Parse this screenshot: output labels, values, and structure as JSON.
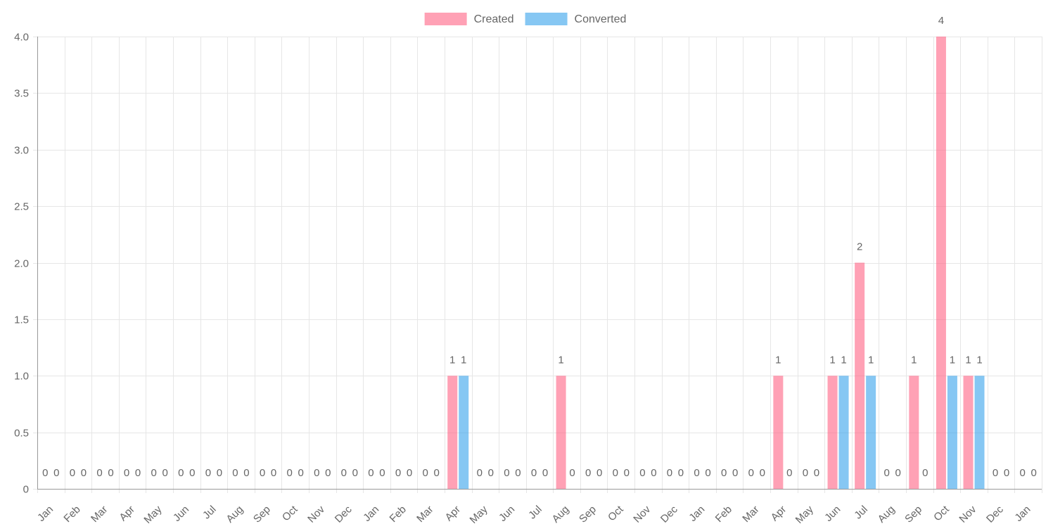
{
  "colors": {
    "created_fill": "#ff6384",
    "converted_fill": "#36a2eb",
    "grid": "#e6e6e6",
    "axis": "#999999",
    "text": "#666666"
  },
  "chart_data": {
    "type": "bar",
    "title": "",
    "xlabel": "",
    "ylabel": "",
    "ylim": [
      0,
      4
    ],
    "yticks": [
      "0",
      "0.5",
      "1.0",
      "1.5",
      "2.0",
      "2.5",
      "3.0",
      "3.5",
      "4.0"
    ],
    "grid": true,
    "legend_position": "top-center",
    "categories": [
      "Jan",
      "Feb",
      "Mar",
      "Apr",
      "May",
      "Jun",
      "Jul",
      "Aug",
      "Sep",
      "Oct",
      "Nov",
      "Dec",
      "Jan",
      "Feb",
      "Mar",
      "Apr",
      "May",
      "Jun",
      "Jul",
      "Aug",
      "Sep",
      "Oct",
      "Nov",
      "Dec",
      "Jan",
      "Feb",
      "Mar",
      "Apr",
      "May",
      "Jun",
      "Jul",
      "Aug",
      "Sep",
      "Oct",
      "Nov",
      "Dec",
      "Jan"
    ],
    "series": [
      {
        "name": "Created",
        "values": [
          0,
          0,
          0,
          0,
          0,
          0,
          0,
          0,
          0,
          0,
          0,
          0,
          0,
          0,
          0,
          1,
          0,
          0,
          0,
          1,
          0,
          0,
          0,
          0,
          0,
          0,
          0,
          1,
          0,
          1,
          2,
          0,
          1,
          4,
          1,
          0,
          0
        ]
      },
      {
        "name": "Converted",
        "values": [
          0,
          0,
          0,
          0,
          0,
          0,
          0,
          0,
          0,
          0,
          0,
          0,
          0,
          0,
          0,
          1,
          0,
          0,
          0,
          0,
          0,
          0,
          0,
          0,
          0,
          0,
          0,
          0,
          0,
          1,
          1,
          0,
          0,
          1,
          1,
          0,
          0
        ]
      }
    ],
    "data_labels_shown": true
  }
}
